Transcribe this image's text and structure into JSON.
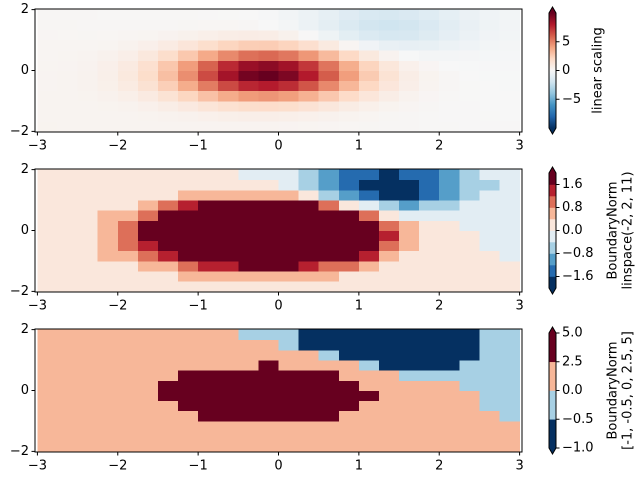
{
  "chart_data": {
    "type": "heatmap",
    "colormap": "RdBu_r",
    "colormap_colors": [
      "#053061",
      "#2166ac",
      "#4393c3",
      "#92c5de",
      "#d1e5f0",
      "#f7f7f7",
      "#fddbc7",
      "#f4a582",
      "#d6604d",
      "#b2182b",
      "#67001f"
    ],
    "x_edges": [
      -3,
      -2.75,
      -2.5,
      -2.25,
      -2,
      -1.75,
      -1.5,
      -1.25,
      -1,
      -0.75,
      -0.5,
      -0.25,
      0,
      0.25,
      0.5,
      0.75,
      1,
      1.25,
      1.5,
      1.75,
      2,
      2.25,
      2.5,
      2.75,
      3
    ],
    "y_edges": [
      -2,
      -1.667,
      -1.333,
      -1,
      -0.667,
      -0.333,
      0,
      0.333,
      0.667,
      1,
      1.333,
      1.667,
      2
    ],
    "z": [
      [
        0.32,
        0.31,
        0.3,
        0.29,
        0.28,
        0.28,
        0.28,
        0.28,
        0.28,
        0.29,
        0.29,
        0.28,
        0.26,
        0.23,
        0.2,
        0.17,
        0.15,
        0.12,
        0.11,
        0.09,
        0.07,
        0.06,
        0.05,
        0.04
      ],
      [
        0.31,
        0.3,
        0.29,
        0.29,
        0.3,
        0.32,
        0.37,
        0.43,
        0.51,
        0.58,
        0.63,
        0.64,
        0.6,
        0.52,
        0.42,
        0.32,
        0.23,
        0.16,
        0.12,
        0.09,
        0.06,
        0.05,
        0.03,
        0.02
      ],
      [
        0.29,
        0.29,
        0.29,
        0.32,
        0.38,
        0.51,
        0.7,
        0.97,
        1.28,
        1.58,
        1.79,
        1.84,
        1.73,
        1.47,
        1.14,
        0.81,
        0.53,
        0.32,
        0.19,
        0.11,
        0.06,
        0.04,
        0.02,
        0
      ],
      [
        0.28,
        0.29,
        0.32,
        0.41,
        0.59,
        0.92,
        1.45,
        2.16,
        2.97,
        3.75,
        4.29,
        4.46,
        4.18,
        3.55,
        2.73,
        1.9,
        1.2,
        0.69,
        0.37,
        0.18,
        0.08,
        0.03,
        0.01,
        -0.01
      ],
      [
        0.27,
        0.29,
        0.36,
        0.53,
        0.87,
        1.48,
        2.43,
        3.72,
        5.2,
        6.61,
        7.6,
        7.91,
        7.42,
        6.3,
        4.83,
        3.34,
        2.09,
        1.18,
        0.61,
        0.28,
        0.12,
        0.03,
        -0.01,
        -0.03
      ],
      [
        0.26,
        0.29,
        0.38,
        0.6,
        1.03,
        1.82,
        3.03,
        4.68,
        6.57,
        8.37,
        9.64,
        10.03,
        9.41,
        7.97,
        6.09,
        4.2,
        2.6,
        1.44,
        0.72,
        0.32,
        0.11,
        0.02,
        -0.03,
        -0.04
      ],
      [
        0.24,
        0.27,
        0.35,
        0.54,
        0.93,
        1.64,
        2.74,
        4.22,
        5.92,
        7.54,
        8.68,
        9.02,
        8.45,
        7.13,
        5.41,
        3.68,
        2.22,
        1.17,
        0.52,
        0.18,
        0.02,
        -0.04,
        -0.06,
        -0.07
      ],
      [
        0.22,
        0.23,
        0.28,
        0.4,
        0.64,
        1.09,
        1.78,
        2.72,
        3.8,
        4.82,
        5.53,
        5.73,
        5.32,
        4.41,
        3.23,
        2.03,
        1.03,
        0.34,
        -0.05,
        -0.2,
        -0.21,
        -0.18,
        -0.14,
        -0.12
      ],
      [
        0.2,
        0.19,
        0.21,
        0.25,
        0.36,
        0.55,
        0.85,
        1.27,
        1.74,
        2.19,
        2.48,
        2.51,
        2.23,
        1.68,
        0.96,
        0.22,
        -0.39,
        -0.75,
        -0.86,
        -0.78,
        -0.59,
        -0.4,
        -0.26,
        -0.18
      ],
      [
        0.18,
        0.17,
        0.16,
        0.17,
        0.19,
        0.25,
        0.33,
        0.46,
        0.59,
        0.71,
        0.76,
        0.69,
        0.45,
        0.04,
        -0.5,
        -1.05,
        -1.49,
        -1.69,
        -1.62,
        -1.34,
        -0.97,
        -0.64,
        -0.39,
        -0.25
      ],
      [
        0.16,
        0.15,
        0.13,
        0.13,
        0.12,
        0.12,
        0.13,
        0.15,
        0.17,
        0.17,
        0.13,
        0.02,
        -0.2,
        -0.56,
        -1.02,
        -1.5,
        -1.88,
        -2.02,
        -1.89,
        -1.54,
        -1.11,
        -0.73,
        -0.45,
        -0.28
      ],
      [
        0.14,
        0.13,
        0.11,
        0.1,
        0.09,
        0.08,
        0.07,
        0.07,
        0.05,
        0.03,
        -0.02,
        -0.11,
        -0.29,
        -0.56,
        -0.91,
        -1.28,
        -1.56,
        -1.66,
        -1.55,
        -1.27,
        -0.93,
        -0.62,
        -0.4,
        -0.27
      ]
    ],
    "xlim": [
      -3.03,
      3.03
    ],
    "ylim": [
      -2.02,
      2.02
    ],
    "xticks": [
      {
        "value": -3,
        "label": "−3"
      },
      {
        "value": -2,
        "label": "−2"
      },
      {
        "value": -1,
        "label": "−1"
      },
      0,
      1,
      2,
      3
    ],
    "yticks": [
      {
        "value": -2,
        "label": "−2"
      },
      0,
      2
    ],
    "panels": [
      {
        "norm": "linear",
        "clim": [
          -10,
          10
        ],
        "extend": "both",
        "colorbar_ticks": [
          {
            "value": -5,
            "label": "−5"
          },
          0,
          5
        ],
        "colorbar_label": [
          "linear scaling"
        ]
      },
      {
        "norm": "boundary",
        "boundaries": [
          -2,
          -1.6,
          -1.2,
          -0.8,
          -0.4,
          0,
          0.4,
          0.8,
          1.2,
          1.6,
          2
        ],
        "extend": "both",
        "colorbar_ticks": [
          {
            "value": -1.6,
            "label": "−1.6"
          },
          {
            "value": -0.8,
            "label": "−0.8"
          },
          {
            "value": 0,
            "label": "0.0"
          },
          0.8,
          1.6
        ],
        "colorbar_label": [
          "BoundaryNorm",
          "linspace(-2, 2, 11)"
        ]
      },
      {
        "norm": "boundary",
        "boundaries": [
          -1,
          -0.5,
          0,
          2.5,
          5
        ],
        "extend": "both",
        "colorbar_ticks": [
          {
            "value": -1,
            "label": "−1.0"
          },
          {
            "value": -0.5,
            "label": "−0.5"
          },
          {
            "value": 0,
            "label": "0.0"
          },
          2.5,
          {
            "value": 5,
            "label": "5.0"
          }
        ],
        "colorbar_label": [
          "BoundaryNorm",
          "[-1, -0.5, 0, 2.5, 5]"
        ]
      }
    ]
  }
}
